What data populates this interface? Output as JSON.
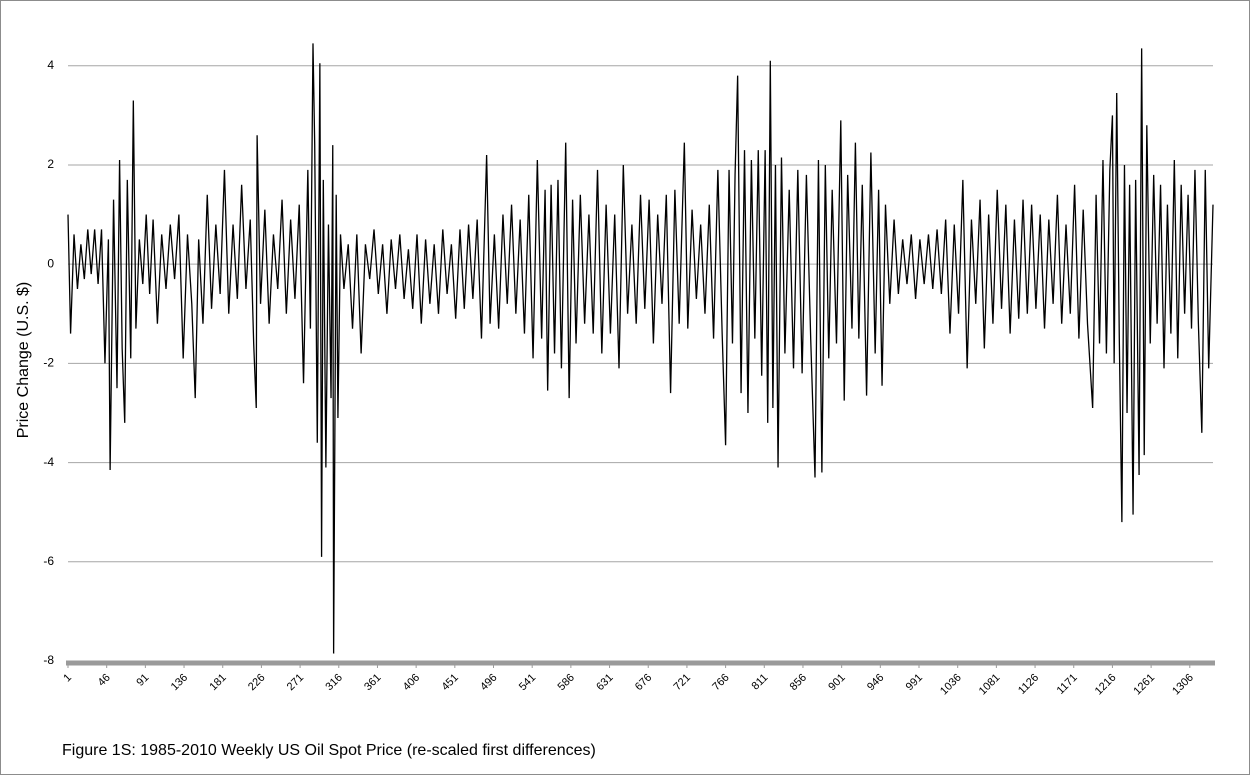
{
  "chart_data": {
    "type": "line",
    "y_label": "Price Change (U.S. $)",
    "caption": "Figure 1S: 1985-2010 Weekly US Oil Spot Price (re-scaled first differences)",
    "color": "#000000",
    "grid": true,
    "xlim": [
      1,
      1333
    ],
    "ylim": [
      -8,
      4.6
    ],
    "yticks": [
      -8,
      -6,
      -4,
      -2,
      0,
      2,
      4
    ],
    "xticks": [
      1,
      46,
      91,
      136,
      181,
      226,
      271,
      316,
      361,
      406,
      451,
      496,
      541,
      586,
      631,
      676,
      721,
      766,
      811,
      856,
      901,
      946,
      991,
      1036,
      1081,
      1126,
      1171,
      1216,
      1261,
      1306
    ],
    "x": [
      1,
      4,
      8,
      12,
      16,
      20,
      24,
      28,
      32,
      36,
      40,
      44,
      48,
      50,
      54,
      58,
      61,
      64,
      67,
      70,
      74,
      77,
      80,
      84,
      88,
      92,
      96,
      100,
      105,
      110,
      115,
      120,
      125,
      130,
      135,
      140,
      145,
      149,
      153,
      158,
      163,
      168,
      173,
      178,
      183,
      188,
      193,
      198,
      203,
      208,
      213,
      217,
      220,
      221,
      225,
      230,
      235,
      240,
      245,
      250,
      255,
      260,
      265,
      270,
      275,
      280,
      283,
      286,
      288,
      291,
      294,
      296,
      298,
      301,
      304,
      307,
      309,
      310,
      313,
      315,
      318,
      322,
      327,
      332,
      337,
      342,
      347,
      352,
      357,
      362,
      367,
      372,
      377,
      382,
      387,
      392,
      397,
      402,
      407,
      412,
      417,
      422,
      427,
      432,
      437,
      442,
      447,
      452,
      457,
      462,
      467,
      472,
      477,
      482,
      488,
      492,
      497,
      502,
      507,
      512,
      517,
      522,
      527,
      532,
      537,
      542,
      547,
      552,
      556,
      559,
      563,
      567,
      571,
      575,
      580,
      584,
      588,
      592,
      597,
      602,
      607,
      612,
      617,
      622,
      627,
      632,
      637,
      642,
      647,
      652,
      657,
      662,
      667,
      672,
      677,
      682,
      687,
      692,
      697,
      702,
      707,
      712,
      718,
      722,
      727,
      732,
      737,
      742,
      747,
      752,
      757,
      762,
      766,
      770,
      774,
      777,
      780,
      784,
      788,
      792,
      796,
      800,
      804,
      808,
      812,
      815,
      818,
      821,
      824,
      827,
      831,
      835,
      840,
      845,
      850,
      855,
      860,
      865,
      870,
      874,
      878,
      882,
      886,
      890,
      895,
      900,
      904,
      908,
      913,
      917,
      921,
      925,
      930,
      935,
      940,
      944,
      948,
      952,
      957,
      962,
      967,
      972,
      977,
      982,
      987,
      992,
      997,
      1002,
      1007,
      1012,
      1017,
      1022,
      1027,
      1032,
      1037,
      1042,
      1047,
      1052,
      1057,
      1062,
      1067,
      1072,
      1077,
      1082,
      1087,
      1092,
      1097,
      1102,
      1107,
      1112,
      1117,
      1122,
      1127,
      1132,
      1137,
      1142,
      1147,
      1152,
      1157,
      1162,
      1167,
      1172,
      1177,
      1182,
      1187,
      1193,
      1197,
      1201,
      1205,
      1209,
      1213,
      1216,
      1218,
      1221,
      1224,
      1227,
      1230,
      1233,
      1236,
      1240,
      1243,
      1247,
      1250,
      1253,
      1256,
      1260,
      1264,
      1268,
      1272,
      1276,
      1280,
      1284,
      1288,
      1292,
      1296,
      1300,
      1304,
      1308,
      1312,
      1316,
      1320,
      1324,
      1328,
      1333
    ],
    "values": [
      1.0,
      -1.4,
      0.6,
      -0.5,
      0.4,
      -0.3,
      0.7,
      -0.2,
      0.7,
      -0.4,
      0.7,
      -2.0,
      0.5,
      -4.15,
      1.3,
      -2.5,
      2.1,
      -1.7,
      -3.2,
      1.7,
      -1.9,
      3.3,
      -1.3,
      0.5,
      -0.4,
      1.0,
      -0.6,
      0.9,
      -1.2,
      0.6,
      -0.5,
      0.8,
      -0.3,
      1.0,
      -1.9,
      0.6,
      -0.8,
      -2.7,
      0.5,
      -1.2,
      1.4,
      -0.9,
      0.8,
      -0.6,
      1.9,
      -1.0,
      0.8,
      -0.7,
      1.6,
      -0.5,
      0.9,
      -1.6,
      -2.9,
      2.6,
      -0.8,
      1.1,
      -1.2,
      0.6,
      -0.5,
      1.3,
      -1.0,
      0.9,
      -0.7,
      1.2,
      -2.4,
      1.9,
      -1.3,
      4.45,
      2.4,
      -3.6,
      4.05,
      -5.9,
      1.7,
      -4.1,
      0.8,
      -2.7,
      2.4,
      -7.85,
      1.4,
      -3.1,
      0.6,
      -0.5,
      0.4,
      -1.3,
      0.6,
      -1.8,
      0.4,
      -0.3,
      0.7,
      -0.6,
      0.4,
      -1.0,
      0.5,
      -0.5,
      0.6,
      -0.7,
      0.3,
      -0.9,
      0.6,
      -1.2,
      0.5,
      -0.8,
      0.4,
      -1.0,
      0.7,
      -0.6,
      0.4,
      -1.1,
      0.7,
      -0.9,
      0.8,
      -0.7,
      0.9,
      -1.5,
      2.2,
      -1.2,
      0.6,
      -1.3,
      1.0,
      -0.8,
      1.2,
      -1.0,
      0.9,
      -1.4,
      1.4,
      -1.9,
      2.1,
      -1.5,
      1.5,
      -2.55,
      1.6,
      -1.8,
      1.7,
      -2.1,
      2.45,
      -2.7,
      1.3,
      -1.6,
      1.4,
      -1.2,
      1.0,
      -1.4,
      1.9,
      -1.8,
      1.2,
      -1.4,
      1.0,
      -2.1,
      2.0,
      -1.0,
      0.8,
      -1.2,
      1.4,
      -0.9,
      1.3,
      -1.6,
      1.0,
      -0.8,
      1.4,
      -2.6,
      1.5,
      -1.2,
      2.45,
      -1.3,
      1.1,
      -0.7,
      0.8,
      -1.0,
      1.2,
      -1.5,
      1.9,
      -1.4,
      -3.65,
      1.9,
      -1.6,
      1.8,
      3.8,
      -2.6,
      2.3,
      -3.0,
      2.1,
      -1.5,
      2.3,
      -2.25,
      2.3,
      -3.2,
      4.1,
      -2.9,
      2.0,
      -4.1,
      2.15,
      -1.8,
      1.5,
      -2.1,
      1.9,
      -2.2,
      1.8,
      -1.5,
      -4.3,
      2.1,
      -4.2,
      2.0,
      -1.9,
      1.5,
      -1.6,
      2.9,
      -2.75,
      1.8,
      -1.3,
      2.45,
      -1.5,
      1.6,
      -2.65,
      2.25,
      -1.8,
      1.5,
      -2.45,
      1.2,
      -0.8,
      0.9,
      -0.6,
      0.5,
      -0.4,
      0.6,
      -0.7,
      0.5,
      -0.4,
      0.6,
      -0.5,
      0.7,
      -0.6,
      0.9,
      -1.4,
      0.8,
      -1.0,
      1.7,
      -2.1,
      0.9,
      -0.8,
      1.3,
      -1.7,
      1.0,
      -1.2,
      1.5,
      -0.9,
      1.2,
      -1.4,
      0.9,
      -1.1,
      1.3,
      -1.0,
      1.2,
      -0.9,
      1.0,
      -1.3,
      0.9,
      -0.8,
      1.4,
      -1.2,
      0.8,
      -1.0,
      1.6,
      -1.5,
      1.1,
      -1.2,
      -2.9,
      1.4,
      -1.6,
      2.1,
      -1.8,
      1.9,
      3.0,
      -2.0,
      3.45,
      -1.5,
      -5.2,
      2.0,
      -3.0,
      1.6,
      -5.05,
      1.7,
      -4.25,
      4.35,
      -3.85,
      2.8,
      -1.6,
      1.8,
      -1.2,
      1.6,
      -2.1,
      1.2,
      -1.4,
      2.1,
      -1.9,
      1.6,
      -1.0,
      1.4,
      -1.3,
      1.9,
      -1.2,
      -3.4,
      1.9,
      -2.1,
      1.2
    ]
  }
}
